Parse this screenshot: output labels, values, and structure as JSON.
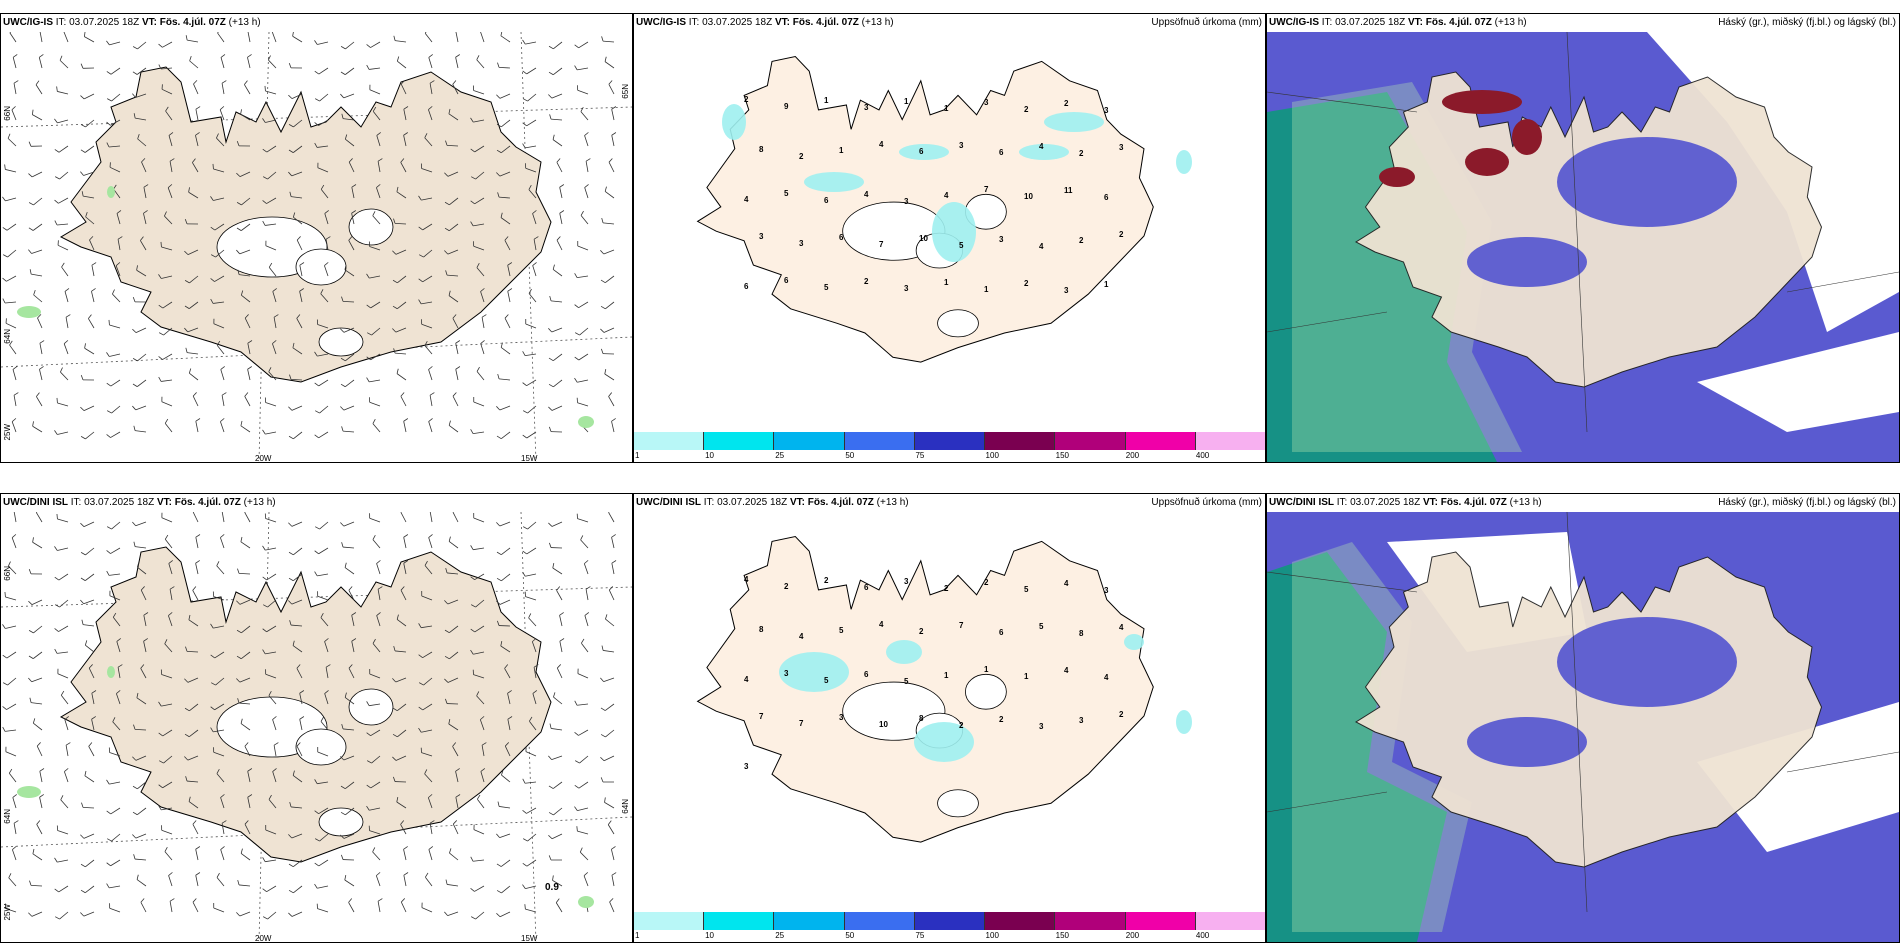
{
  "rows": [
    {
      "model": "UWC/IG-IS",
      "it_label": "IT:",
      "it_value": "03.07.2025 18Z",
      "vt_label": "VT:",
      "vt_value": "Fös. 4.júl. 07Z",
      "lead": "(+13 h)"
    },
    {
      "model": "UWC/DINI ISL",
      "it_label": "IT:",
      "it_value": "03.07.2025 18Z",
      "vt_label": "VT:",
      "vt_value": "Fös. 4.júl. 07Z",
      "lead": "(+13 h)"
    }
  ],
  "precip_legend": "Uppsöfnuð úrkoma (mm)",
  "cloud_legend": "Háský (gr.), miðský (fj.bl.) og lágský (bl.)",
  "colorbar": {
    "ticks": [
      "1",
      "10",
      "25",
      "50",
      "75",
      "100",
      "150",
      "200",
      "400"
    ],
    "colors": [
      "#b8f7f7",
      "#00e5ee",
      "#00b4ee",
      "#3a6ef0",
      "#2a30c0",
      "#7a0050",
      "#b0007a",
      "#f000a8",
      "#f7b0f0"
    ]
  },
  "wind_axes": {
    "lat_labels": [
      "66N",
      "64N",
      "25W"
    ],
    "lon_labels": [
      "20W",
      "15W"
    ],
    "right_labels": [
      "65N",
      "64N"
    ]
  },
  "precip_values_top": [
    "2",
    "9",
    "1",
    "3",
    "1",
    "1",
    "3",
    "2",
    "2",
    "3",
    "8",
    "2",
    "1",
    "4",
    "6",
    "3",
    "6",
    "4",
    "2",
    "3",
    "4",
    "5",
    "6",
    "4",
    "3",
    "4",
    "7",
    "10",
    "11",
    "6",
    "3",
    "3",
    "6",
    "7",
    "10",
    "5",
    "3",
    "4",
    "2",
    "2",
    "6",
    "6",
    "5",
    "2",
    "3",
    "1",
    "1",
    "2",
    "3",
    "1"
  ],
  "precip_values_bottom": [
    "4",
    "2",
    "2",
    "6",
    "3",
    "2",
    "2",
    "5",
    "4",
    "3",
    "8",
    "4",
    "5",
    "4",
    "2",
    "7",
    "6",
    "5",
    "8",
    "4",
    "4",
    "3",
    "5",
    "6",
    "5",
    "1",
    "1",
    "1",
    "4",
    "4",
    "7",
    "7",
    "3",
    "10",
    "8",
    "2",
    "2",
    "3",
    "3",
    "2",
    "3"
  ],
  "wind_annotation_bottom": "0.9",
  "colors": {
    "land": "#efe3d3",
    "land_precip": "#fdf0e3",
    "cloud_high": "#0a9b78",
    "cloud_mid": "#b7e7b0",
    "cloud_low": "#5a5ad0",
    "cloud_dark": "#8b1a2a"
  }
}
